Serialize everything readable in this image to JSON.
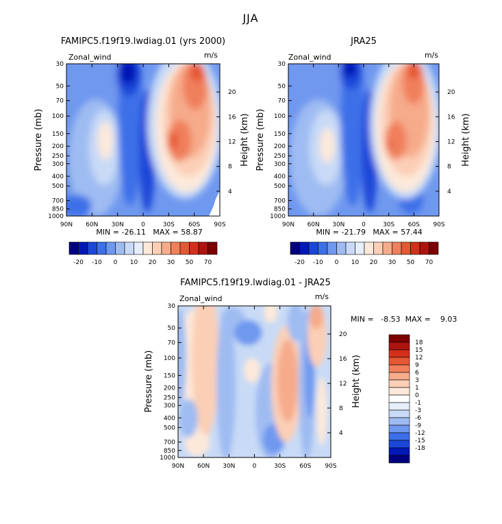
{
  "title": "JJA",
  "colors": {
    "blue_scale": [
      "#00007f",
      "#0019b5",
      "#1a47d8",
      "#3c6fe8",
      "#6f98ef",
      "#9fbcf2",
      "#c8daf6",
      "#e6eefb"
    ],
    "red_scale": [
      "#fde9da",
      "#fbcfb6",
      "#f6ab8b",
      "#f07f5c",
      "#e65733",
      "#d2301a",
      "#ac1410",
      "#7d0000"
    ],
    "white": "#ffffff"
  },
  "chart_data": [
    {
      "type": "heatmap",
      "name": "model",
      "title": "FAMIPC5.f19f19.lwdiag.01 (yrs 2000)",
      "field_label": "Zonal_wind",
      "units": "m/s",
      "ylabel": "Pressure (mb)",
      "ylabel_right": "Height (km)",
      "x_ticks": [
        "90N",
        "60N",
        "30N",
        "0",
        "30S",
        "60S",
        "90S"
      ],
      "x_values": [
        -90,
        -60,
        -30,
        0,
        30,
        60,
        90
      ],
      "y_ticks": [
        "30",
        "50",
        "70",
        "100",
        "150",
        "200",
        "250",
        "300",
        "400",
        "500",
        "700",
        "850",
        "1000"
      ],
      "y_values": [
        30,
        50,
        70,
        100,
        150,
        200,
        250,
        300,
        400,
        500,
        700,
        850,
        1000
      ],
      "height_ticks": [
        "20",
        "16",
        "12",
        "8",
        "4"
      ],
      "height_values": [
        20,
        16,
        12,
        8,
        4
      ],
      "min": -26.11,
      "max": 58.87,
      "stats_text": "MIN = -26.11   MAX = 58.87",
      "colorbar_levels": [
        "-20",
        "-10",
        "0",
        "10",
        "20",
        "30",
        "50",
        "70"
      ]
    },
    {
      "type": "heatmap",
      "name": "obs",
      "title": "JRA25",
      "field_label": "Zonal_wind",
      "units": "m/s",
      "ylabel": "Pressure (mb)",
      "ylabel_right": "Height (km)",
      "x_ticks": [
        "90N",
        "60N",
        "30N",
        "0",
        "30S",
        "60S",
        "90S"
      ],
      "x_values": [
        -90,
        -60,
        -30,
        0,
        30,
        60,
        90
      ],
      "y_ticks": [
        "30",
        "50",
        "70",
        "100",
        "150",
        "200",
        "250",
        "300",
        "400",
        "500",
        "700",
        "850",
        "1000"
      ],
      "y_values": [
        30,
        50,
        70,
        100,
        150,
        200,
        250,
        300,
        400,
        500,
        700,
        850,
        1000
      ],
      "height_ticks": [
        "20",
        "16",
        "12",
        "8",
        "4"
      ],
      "height_values": [
        20,
        16,
        12,
        8,
        4
      ],
      "min": -21.79,
      "max": 57.44,
      "stats_text": "MIN = -21.79   MAX = 57.44",
      "colorbar_levels": [
        "-20",
        "-10",
        "0",
        "10",
        "20",
        "30",
        "50",
        "70"
      ]
    },
    {
      "type": "heatmap",
      "name": "diff",
      "title": "FAMIPC5.f19f19.lwdiag.01 - JRA25",
      "field_label": "Zonal_wind",
      "units": "m/s",
      "ylabel": "Pressure (mb)",
      "ylabel_right": "Height (km)",
      "x_ticks": [
        "90N",
        "60N",
        "30N",
        "0",
        "30S",
        "60S",
        "90S"
      ],
      "x_values": [
        -90,
        -60,
        -30,
        0,
        30,
        60,
        90
      ],
      "y_ticks": [
        "30",
        "50",
        "70",
        "100",
        "150",
        "200",
        "250",
        "300",
        "400",
        "500",
        "700",
        "850",
        "1000"
      ],
      "y_values": [
        30,
        50,
        70,
        100,
        150,
        200,
        250,
        300,
        400,
        500,
        700,
        850,
        1000
      ],
      "height_ticks": [
        "20",
        "16",
        "12",
        "8",
        "4"
      ],
      "height_values": [
        20,
        16,
        12,
        8,
        4
      ],
      "min": -8.53,
      "max": 9.03,
      "stats_text": "MIN =   -8.53  MAX =    9.03",
      "colorbar_levels": [
        "18",
        "15",
        "12",
        "9",
        "6",
        "3",
        "1",
        "0",
        "-1",
        "-3",
        "-6",
        "-9",
        "-12",
        "-15",
        "-18"
      ]
    }
  ]
}
